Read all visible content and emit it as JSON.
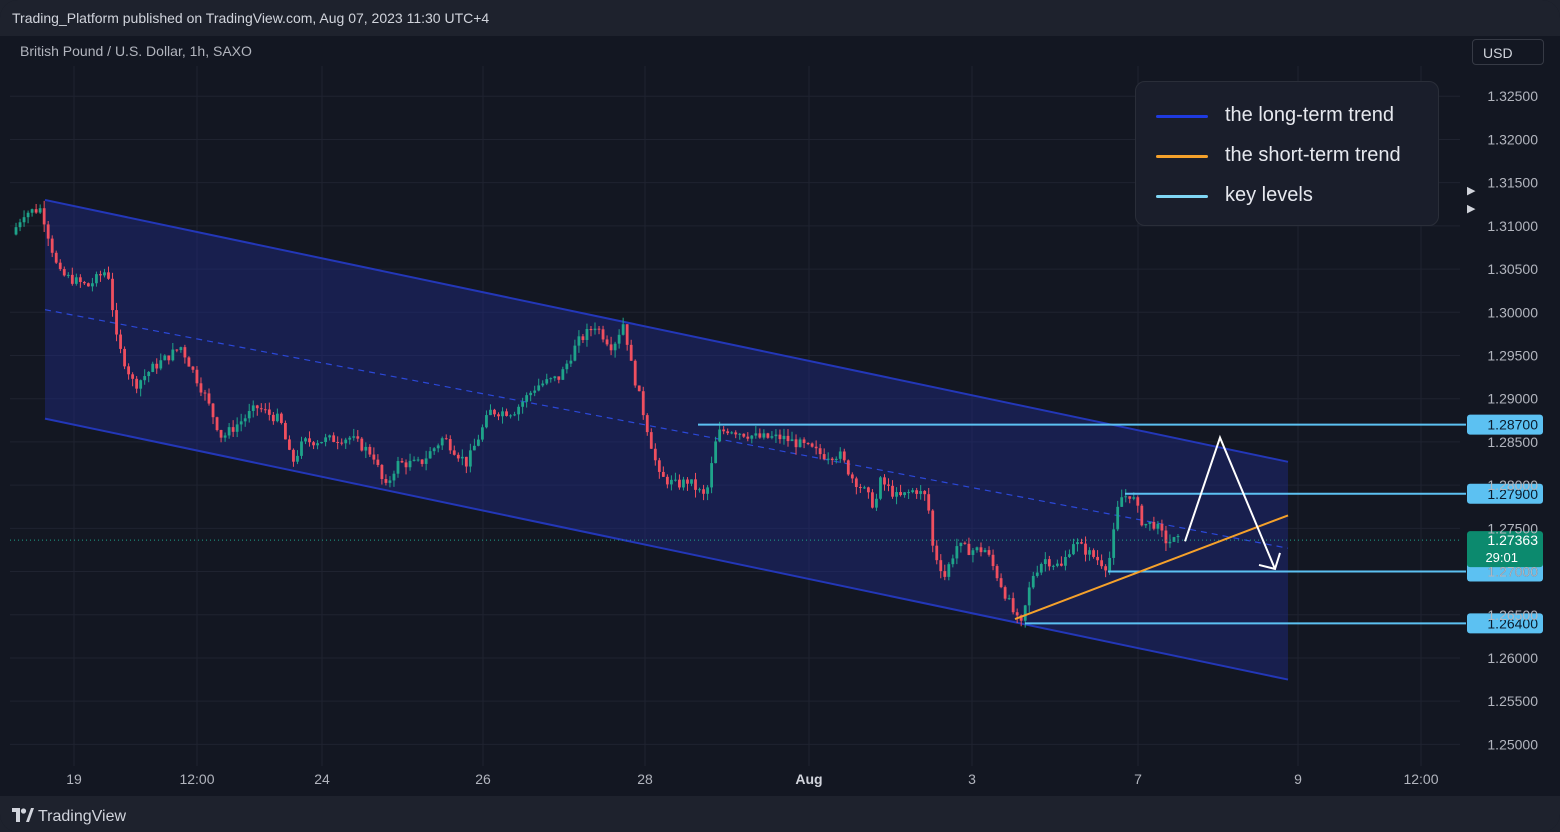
{
  "header": {
    "published": "Trading_Platform published on TradingView.com, Aug 07, 2023 11:30 UTC+4",
    "symbol": "British Pound / U.S. Dollar, 1h, SAXO",
    "currency": "USD"
  },
  "footer": {
    "brand": "TradingView"
  },
  "legend": [
    {
      "label": "the long-term trend",
      "color": "#1e3ae0"
    },
    {
      "label": "the short-term trend",
      "color": "#f5a12b"
    },
    {
      "label": "key levels",
      "color": "#7fd6f5"
    }
  ],
  "chart_data": {
    "type": "candlestick",
    "title": "British Pound / U.S. Dollar, 1h, SAXO",
    "x_tick_labels": [
      "19",
      "12:00",
      "24",
      "26",
      "28",
      "Aug",
      "3",
      "7",
      "9",
      "12:00"
    ],
    "y_ticks": [
      "1.32500",
      "1.32000",
      "1.31500",
      "1.31000",
      "1.30500",
      "1.30000",
      "1.29500",
      "1.29000",
      "1.28500",
      "1.28000",
      "1.27500",
      "1.27000",
      "1.26500",
      "1.26000",
      "1.25500",
      "1.25000"
    ],
    "ylim": [
      1.2475,
      1.3285
    ],
    "current_price": {
      "label": "1.27363",
      "countdown": "29:01",
      "value": 1.27363,
      "color": "#0c8a6e"
    },
    "key_levels": [
      {
        "label": "1.28700",
        "value": 1.287
      },
      {
        "label": "1.27900",
        "value": 1.279
      },
      {
        "label": "1.27000",
        "value": 1.27
      },
      {
        "label": "1.26400",
        "value": 1.264
      }
    ],
    "price_path": [
      [
        0.0,
        1.309
      ],
      [
        0.01,
        1.3115
      ],
      [
        0.025,
        1.312
      ],
      [
        0.04,
        1.3045
      ],
      [
        0.065,
        1.303
      ],
      [
        0.082,
        1.305
      ],
      [
        0.09,
        1.2965
      ],
      [
        0.105,
        1.2915
      ],
      [
        0.12,
        1.2935
      ],
      [
        0.145,
        1.296
      ],
      [
        0.165,
        1.2905
      ],
      [
        0.18,
        1.2855
      ],
      [
        0.21,
        1.289
      ],
      [
        0.23,
        1.2875
      ],
      [
        0.24,
        1.2825
      ],
      [
        0.25,
        1.285
      ],
      [
        0.29,
        1.2855
      ],
      [
        0.31,
        1.2835
      ],
      [
        0.32,
        1.2795
      ],
      [
        0.33,
        1.2825
      ],
      [
        0.35,
        1.2825
      ],
      [
        0.37,
        1.2855
      ],
      [
        0.39,
        1.2825
      ],
      [
        0.41,
        1.2885
      ],
      [
        0.43,
        1.2885
      ],
      [
        0.45,
        1.2915
      ],
      [
        0.47,
        1.2925
      ],
      [
        0.485,
        1.2965
      ],
      [
        0.5,
        1.2985
      ],
      [
        0.515,
        1.296
      ],
      [
        0.525,
        1.299
      ],
      [
        0.53,
        1.2945
      ],
      [
        0.545,
        1.2865
      ],
      [
        0.555,
        1.281
      ],
      [
        0.57,
        1.28
      ],
      [
        0.58,
        1.2805
      ],
      [
        0.595,
        1.2785
      ],
      [
        0.605,
        1.286
      ],
      [
        0.615,
        1.2865
      ],
      [
        0.64,
        1.2855
      ],
      [
        0.66,
        1.2855
      ],
      [
        0.68,
        1.2845
      ],
      [
        0.695,
        1.2835
      ],
      [
        0.71,
        1.2835
      ],
      [
        0.72,
        1.281
      ],
      [
        0.73,
        1.2795
      ],
      [
        0.74,
        1.2775
      ],
      [
        0.745,
        1.2805
      ],
      [
        0.76,
        1.2785
      ],
      [
        0.775,
        1.2795
      ],
      [
        0.785,
        1.2785
      ],
      [
        0.79,
        1.2725
      ],
      [
        0.8,
        1.2695
      ],
      [
        0.81,
        1.273
      ],
      [
        0.82,
        1.2725
      ],
      [
        0.835,
        1.2725
      ],
      [
        0.845,
        1.2695
      ],
      [
        0.858,
        1.2655
      ],
      [
        0.865,
        1.2635
      ],
      [
        0.875,
        1.2695
      ],
      [
        0.885,
        1.2715
      ],
      [
        0.9,
        1.2705
      ],
      [
        0.91,
        1.2735
      ],
      [
        0.92,
        1.2725
      ],
      [
        0.93,
        1.2715
      ],
      [
        0.94,
        1.2705
      ],
      [
        0.95,
        1.2785
      ],
      [
        0.96,
        1.279
      ],
      [
        0.97,
        1.2755
      ],
      [
        0.98,
        1.2755
      ],
      [
        0.99,
        1.2735
      ],
      [
        1.0,
        1.2736
      ]
    ],
    "long_term_channel": {
      "upper_start": 1.313,
      "upper_end": 1.2827,
      "lower_start": 1.2877,
      "lower_end": 1.2575,
      "midline_start": 1.3003,
      "midline_end": 1.2727
    },
    "short_term_trend": {
      "start": 1.2645,
      "end": 1.2765
    },
    "projection": [
      1.2735,
      1.2855,
      1.2703
    ]
  }
}
